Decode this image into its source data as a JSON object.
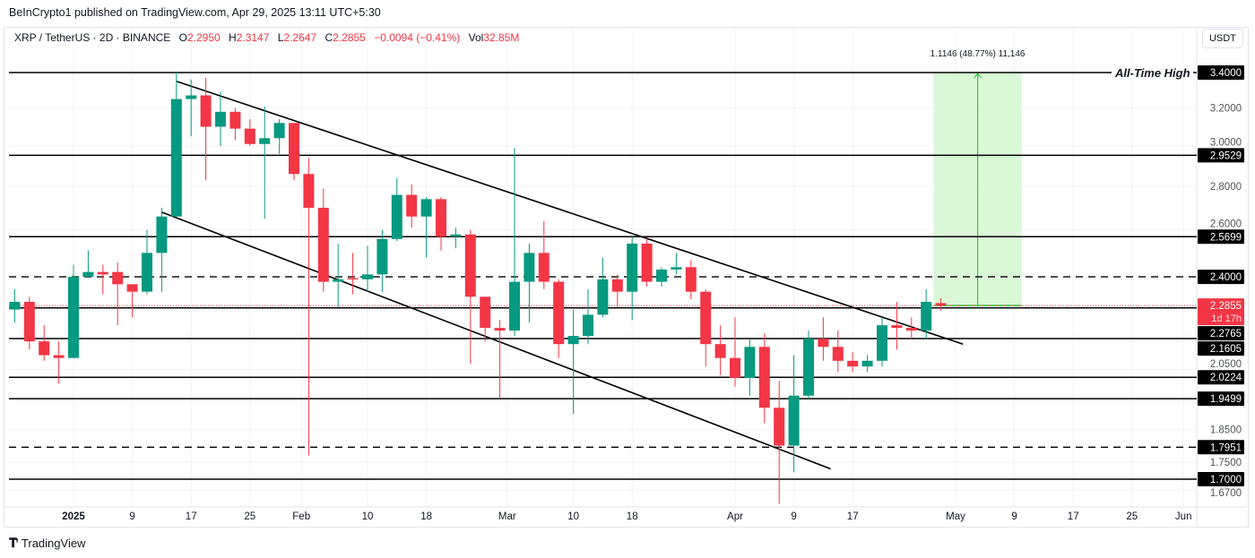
{
  "header": {
    "published": "BeInCrypto1 published on TradingView.com, Apr 29, 2025 13:11 UTC+5:30"
  },
  "legend": {
    "symbol": "XRP / TetherUS · 2D · BINANCE",
    "open_label": "O",
    "open": "2.2950",
    "high_label": "H",
    "high": "2.3147",
    "low_label": "L",
    "low": "2.2647",
    "close_label": "C",
    "close": "2.2855",
    "change": "−0.0094 (−0.41%)",
    "vol_label": "Vol",
    "vol": "32.85M"
  },
  "currency_button": "USDT",
  "footer": {
    "brand": "TradingView",
    "brand_mark": "17"
  },
  "colors": {
    "up": "#089981",
    "down": "#f23645",
    "measure_fill": "#d4f7d0",
    "measure_line": "#2ecc40",
    "level": "#000000"
  },
  "chart_data": {
    "type": "candlestick",
    "y_scale": "log",
    "grid": true,
    "ylim": [
      1.62,
      3.52
    ],
    "candles_format": [
      "date",
      "open",
      "high",
      "low",
      "close"
    ],
    "candles": [
      [
        "2024-12-24",
        2.27,
        2.35,
        2.22,
        2.3
      ],
      [
        "2024-12-26",
        2.3,
        2.32,
        2.12,
        2.15
      ],
      [
        "2024-12-28",
        2.15,
        2.21,
        2.08,
        2.1
      ],
      [
        "2024-12-30",
        2.1,
        2.15,
        2.0,
        2.09
      ],
      [
        "2025-01-01",
        2.09,
        2.45,
        2.09,
        2.4
      ],
      [
        "2025-01-03",
        2.4,
        2.51,
        2.4,
        2.42
      ],
      [
        "2025-01-05",
        2.42,
        2.45,
        2.33,
        2.41
      ],
      [
        "2025-01-07",
        2.42,
        2.46,
        2.21,
        2.37
      ],
      [
        "2025-01-09",
        2.37,
        2.37,
        2.24,
        2.34
      ],
      [
        "2025-01-11",
        2.34,
        2.6,
        2.33,
        2.5
      ],
      [
        "2025-01-13",
        2.5,
        2.7,
        2.34,
        2.66
      ],
      [
        "2025-01-15",
        2.66,
        3.4,
        2.66,
        3.25
      ],
      [
        "2025-01-17",
        3.25,
        3.36,
        3.05,
        3.27
      ],
      [
        "2025-01-19",
        3.27,
        3.37,
        2.83,
        3.1
      ],
      [
        "2025-01-21",
        3.1,
        3.29,
        3.0,
        3.18
      ],
      [
        "2025-01-23",
        3.18,
        3.2,
        3.03,
        3.09
      ],
      [
        "2025-01-25",
        3.09,
        3.14,
        3.0,
        3.01
      ],
      [
        "2025-01-27",
        3.01,
        3.21,
        2.65,
        3.04
      ],
      [
        "2025-01-29",
        3.04,
        3.14,
        2.96,
        3.12
      ],
      [
        "2025-01-31",
        3.12,
        3.12,
        2.83,
        2.86
      ],
      [
        "2025-02-02",
        2.86,
        2.94,
        1.77,
        2.7
      ],
      [
        "2025-02-04",
        2.7,
        2.79,
        2.34,
        2.38
      ],
      [
        "2025-02-06",
        2.38,
        2.54,
        2.28,
        2.39
      ],
      [
        "2025-02-08",
        2.395,
        2.5,
        2.33,
        2.39
      ],
      [
        "2025-02-10",
        2.39,
        2.53,
        2.34,
        2.41
      ],
      [
        "2025-02-12",
        2.41,
        2.6,
        2.34,
        2.56
      ],
      [
        "2025-02-14",
        2.56,
        2.84,
        2.55,
        2.76
      ],
      [
        "2025-02-16",
        2.76,
        2.81,
        2.61,
        2.66
      ],
      [
        "2025-02-18",
        2.66,
        2.75,
        2.48,
        2.74
      ],
      [
        "2025-02-20",
        2.74,
        2.75,
        2.51,
        2.57
      ],
      [
        "2025-02-22",
        2.57,
        2.61,
        2.52,
        2.58
      ],
      [
        "2025-02-24",
        2.58,
        2.6,
        2.07,
        2.32
      ],
      [
        "2025-02-26",
        2.32,
        2.32,
        2.15,
        2.2
      ],
      [
        "2025-02-28",
        2.2,
        2.23,
        1.95,
        2.19
      ],
      [
        "2025-03-02",
        2.19,
        2.99,
        2.17,
        2.38
      ],
      [
        "2025-03-04",
        2.38,
        2.54,
        2.22,
        2.5
      ],
      [
        "2025-03-06",
        2.5,
        2.64,
        2.35,
        2.38
      ],
      [
        "2025-03-08",
        2.38,
        2.39,
        2.09,
        2.14
      ],
      [
        "2025-03-10",
        2.14,
        2.27,
        1.9,
        2.17
      ],
      [
        "2025-03-12",
        2.17,
        2.35,
        2.14,
        2.25
      ],
      [
        "2025-03-14",
        2.25,
        2.48,
        2.24,
        2.39
      ],
      [
        "2025-03-16",
        2.39,
        2.41,
        2.28,
        2.34
      ],
      [
        "2025-03-18",
        2.34,
        2.57,
        2.23,
        2.54
      ],
      [
        "2025-03-20",
        2.54,
        2.56,
        2.36,
        2.38
      ],
      [
        "2025-03-22",
        2.38,
        2.44,
        2.36,
        2.43
      ],
      [
        "2025-03-24",
        2.43,
        2.5,
        2.41,
        2.44
      ],
      [
        "2025-03-26",
        2.44,
        2.47,
        2.31,
        2.34
      ],
      [
        "2025-03-28",
        2.34,
        2.35,
        2.06,
        2.14
      ],
      [
        "2025-03-30",
        2.14,
        2.21,
        2.03,
        2.09
      ],
      [
        "2025-04-01",
        2.09,
        2.24,
        1.99,
        2.02
      ],
      [
        "2025-04-03",
        2.02,
        2.16,
        1.96,
        2.13
      ],
      [
        "2025-04-05",
        2.13,
        2.18,
        1.87,
        1.92
      ],
      [
        "2025-04-07",
        1.92,
        2.01,
        1.63,
        1.8
      ],
      [
        "2025-04-09",
        1.8,
        2.1,
        1.72,
        1.96
      ],
      [
        "2025-04-11",
        1.96,
        2.19,
        1.95,
        2.16
      ],
      [
        "2025-04-13",
        2.16,
        2.24,
        2.08,
        2.13
      ],
      [
        "2025-04-15",
        2.13,
        2.19,
        2.04,
        2.08
      ],
      [
        "2025-04-17",
        2.08,
        2.11,
        2.04,
        2.06
      ],
      [
        "2025-04-19",
        2.06,
        2.1,
        2.04,
        2.08
      ],
      [
        "2025-04-21",
        2.08,
        2.24,
        2.06,
        2.21
      ],
      [
        "2025-04-23",
        2.21,
        2.3,
        2.12,
        2.2
      ],
      [
        "2025-04-25",
        2.2,
        2.24,
        2.16,
        2.19
      ],
      [
        "2025-04-27",
        2.19,
        2.35,
        2.16,
        2.3
      ],
      [
        "2025-04-29",
        2.295,
        2.3147,
        2.2647,
        2.2855
      ]
    ],
    "levels": [
      {
        "price": 3.4,
        "label": "3.4000",
        "style": "solid",
        "annotation": "All-Time High"
      },
      {
        "price": 2.9529,
        "label": "2.9529",
        "style": "solid"
      },
      {
        "price": 2.5699,
        "label": "2.5699",
        "style": "solid"
      },
      {
        "price": 2.4,
        "label": "2.4000",
        "style": "dashed"
      },
      {
        "price": 2.2765,
        "label": "2.2765",
        "style": "solid"
      },
      {
        "price": 2.1605,
        "label": "2.1605",
        "style": "solid"
      },
      {
        "price": 2.0224,
        "label": "2.0224",
        "style": "solid"
      },
      {
        "price": 1.9499,
        "label": "1.9499",
        "style": "solid"
      },
      {
        "price": 1.7951,
        "label": "1.7951",
        "style": "dashed"
      },
      {
        "price": 1.7,
        "label": "1.7000",
        "style": "solid"
      }
    ],
    "current_price": {
      "price": 2.2855,
      "label": "2.2855",
      "countdown": "1d 17h"
    },
    "y_ticks": [
      {
        "price": 3.2,
        "label": "3.2000"
      },
      {
        "price": 3.0,
        "label": "3.0000"
      },
      {
        "price": 2.8,
        "label": "2.8000"
      },
      {
        "price": 2.6,
        "label": "2.6000"
      },
      {
        "price": 2.05,
        "label": "2.0500"
      },
      {
        "price": 1.85,
        "label": "1.8500"
      },
      {
        "price": 1.75,
        "label": "1.7500"
      },
      {
        "price": 1.67,
        "label": "1.6700"
      }
    ],
    "x_ticks": [
      {
        "date": "2025-01-01",
        "label": "2025",
        "bold": true
      },
      {
        "date": "2025-01-09",
        "label": "9"
      },
      {
        "date": "2025-01-17",
        "label": "17"
      },
      {
        "date": "2025-01-25",
        "label": "25"
      },
      {
        "date": "2025-02-01",
        "label": "Feb"
      },
      {
        "date": "2025-02-10",
        "label": "10"
      },
      {
        "date": "2025-02-18",
        "label": "18"
      },
      {
        "date": "2025-03-01",
        "label": "Mar"
      },
      {
        "date": "2025-03-10",
        "label": "10"
      },
      {
        "date": "2025-03-18",
        "label": "18"
      },
      {
        "date": "2025-04-01",
        "label": "Apr"
      },
      {
        "date": "2025-04-09",
        "label": "9"
      },
      {
        "date": "2025-04-17",
        "label": "17"
      },
      {
        "date": "2025-05-01",
        "label": "May"
      },
      {
        "date": "2025-05-09",
        "label": "9"
      },
      {
        "date": "2025-05-17",
        "label": "17"
      },
      {
        "date": "2025-05-25",
        "label": "25"
      },
      {
        "date": "2025-06-01",
        "label": "Jun"
      }
    ],
    "trendlines": [
      {
        "from": [
          "2025-01-15",
          3.35
        ],
        "to": [
          "2025-05-02",
          2.14
        ]
      },
      {
        "from": [
          "2025-01-13",
          2.68
        ],
        "to": [
          "2025-04-14",
          1.73
        ]
      }
    ],
    "measure": {
      "from_date": "2025-04-28",
      "to_date": "2025-05-10",
      "from_price": 2.2854,
      "to_price": 3.4,
      "label": "1.1146 (48.77%) 11,146"
    }
  }
}
